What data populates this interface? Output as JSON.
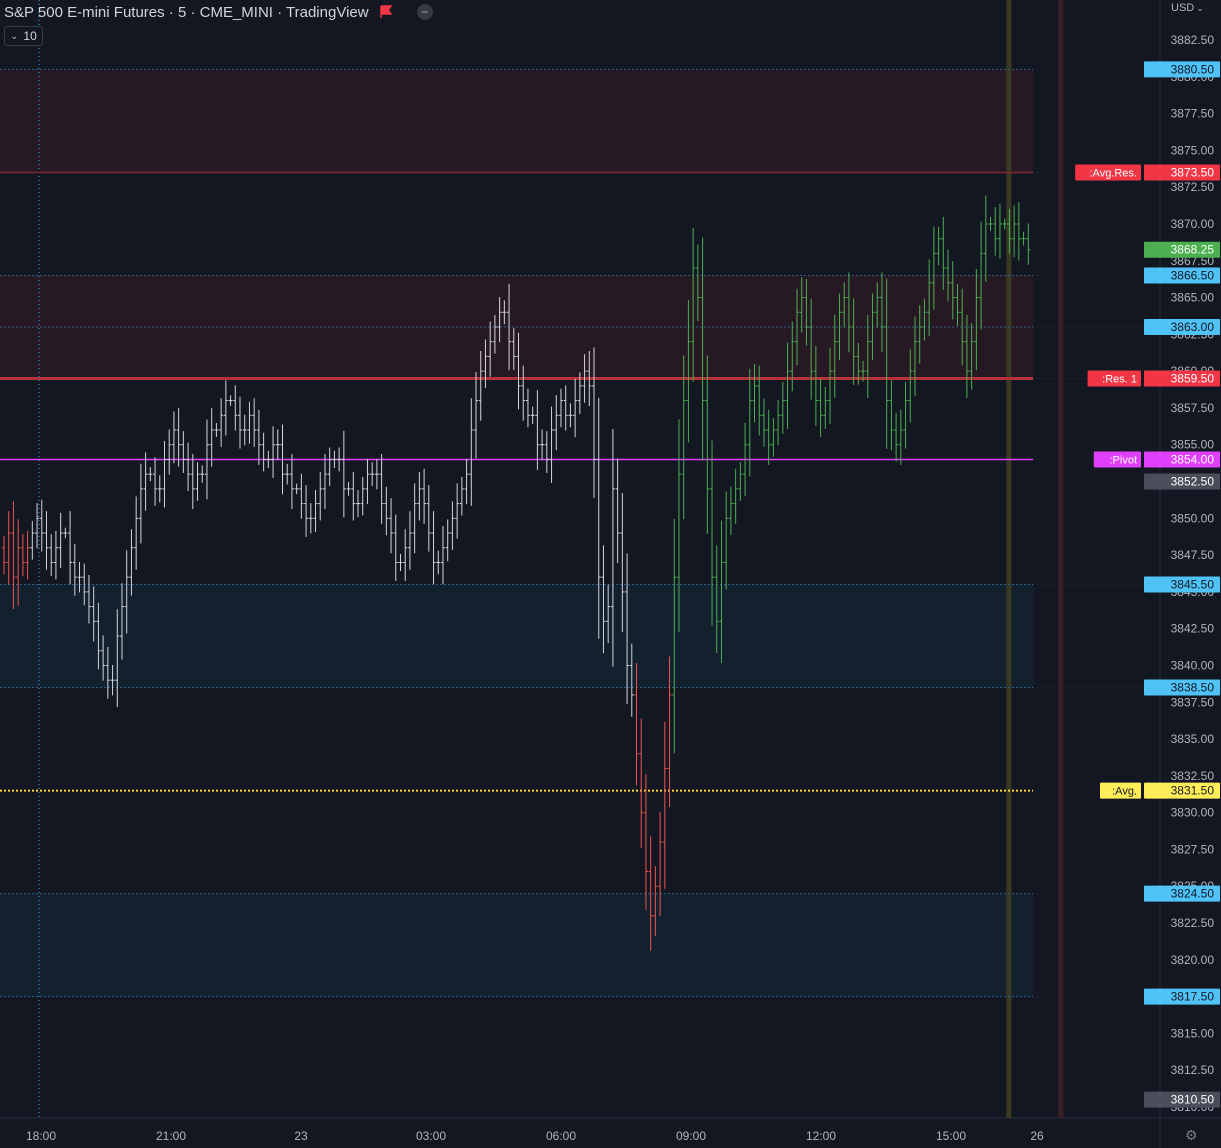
{
  "header": {
    "title": "S&P 500 E-mini Futures · 5 · CME_MINI · TradingView",
    "indicator_value": "10",
    "currency": "USD"
  },
  "colors": {
    "background": "#131722",
    "up": "#4caf50",
    "down": "#ef5350",
    "neutral": "#d1d4dc",
    "pivot": "#e040fb",
    "resistance": "#f23645",
    "average": "#fdd835",
    "level": "#29b6f6"
  },
  "chart_data": {
    "type": "ohlc",
    "ylim": [
      3809.5,
      3883.5
    ],
    "y_ticks": [
      "3882.50",
      "3880.00",
      "3877.50",
      "3875.00",
      "3872.50",
      "3870.00",
      "3867.50",
      "3865.00",
      "3862.50",
      "3860.00",
      "3857.50",
      "3855.00",
      "3852.50",
      "3850.00",
      "3847.50",
      "3845.00",
      "3842.50",
      "3840.00",
      "3837.50",
      "3835.00",
      "3832.50",
      "3830.00",
      "3827.50",
      "3825.00",
      "3822.50",
      "3820.00",
      "3817.50",
      "3815.00",
      "3812.50",
      "3810.00"
    ],
    "x_ticks": [
      "18:00",
      "21:00",
      "23",
      "03:00",
      "06:00",
      "09:00",
      "12:00",
      "15:00",
      "26"
    ],
    "zones": [
      {
        "from": 3873.5,
        "to": 3880.5,
        "kind": "resistance"
      },
      {
        "from": 3859.5,
        "to": 3866.5,
        "kind": "resistance"
      },
      {
        "from": 3838.5,
        "to": 3845.5,
        "kind": "support"
      },
      {
        "from": 3817.5,
        "to": 3824.5,
        "kind": "support"
      }
    ],
    "levels": [
      {
        "price": 3880.5,
        "label": "",
        "value": "3880.50",
        "style": "dotted-blue"
      },
      {
        "price": 3873.5,
        "label": ":Avg.Res.",
        "value": "3873.50",
        "style": "resistance-thin"
      },
      {
        "price": 3866.5,
        "label": "",
        "value": "3866.50",
        "style": "dotted-blue"
      },
      {
        "price": 3863.0,
        "label": "",
        "value": "3863.00",
        "style": "dotted-blue"
      },
      {
        "price": 3859.5,
        "label": ":Res. 1",
        "value": "3859.50",
        "style": "resistance-thick"
      },
      {
        "price": 3854.0,
        "label": ":Pivot",
        "value": "3854.00",
        "style": "pivot"
      },
      {
        "price": 3845.5,
        "label": "",
        "value": "3845.50",
        "style": "dotted-blue"
      },
      {
        "price": 3838.5,
        "label": "",
        "value": "3838.50",
        "style": "dotted-blue"
      },
      {
        "price": 3831.5,
        "label": ":Avg.",
        "value": "3831.50",
        "style": "average"
      },
      {
        "price": 3824.5,
        "label": "",
        "value": "3824.50",
        "style": "dotted-blue"
      },
      {
        "price": 3817.5,
        "label": "",
        "value": "3817.50",
        "style": "dotted-blue"
      }
    ],
    "markers": [
      {
        "price": 3868.25,
        "value": "3868.25",
        "kind": "last-price"
      },
      {
        "price": 3852.5,
        "value": "3852.50",
        "kind": "grey"
      },
      {
        "price": 3810.5,
        "value": "3810.50",
        "kind": "grey"
      }
    ],
    "segments": [
      {
        "color": "down",
        "start": 3848,
        "points": [
          3847,
          3849,
          3846,
          3848,
          3847,
          3848
        ]
      },
      {
        "color": "neutral",
        "start": 3848,
        "points": [
          3849,
          3850,
          3849,
          3848,
          3847,
          3848,
          3849,
          3849,
          3847,
          3846,
          3846,
          3845,
          3844,
          3843,
          3841,
          3840,
          3839,
          3839,
          3842,
          3844,
          3846,
          3848,
          3850,
          3852,
          3853,
          3853,
          3852,
          3852,
          3854,
          3855,
          3856,
          3855,
          3854,
          3853,
          3852,
          3853,
          3853,
          3855,
          3856,
          3856,
          3857,
          3858,
          3858,
          3857,
          3856,
          3856,
          3857,
          3856,
          3855,
          3854,
          3854,
          3855,
          3855,
          3853,
          3853,
          3852,
          3852,
          3851,
          3850,
          3850,
          3851,
          3852,
          3853,
          3854,
          3854,
          3854,
          3852,
          3852,
          3851,
          3851,
          3852,
          3853,
          3853,
          3853,
          3851,
          3850,
          3849,
          3847,
          3847,
          3848,
          3849,
          3851,
          3852,
          3851,
          3849,
          3847,
          3847,
          3848,
          3849,
          3850,
          3851,
          3852,
          3853,
          3856,
          3858,
          3860,
          3861,
          3862,
          3863,
          3864,
          3864,
          3862,
          3861,
          3859,
          3858,
          3857,
          3857,
          3855,
          3855,
          3854,
          3856,
          3857,
          3858,
          3857,
          3857,
          3858,
          3859,
          3860,
          3859,
          3854,
          3846,
          3843,
          3844,
          3852,
          3849,
          3845,
          3840,
          3838
        ]
      },
      {
        "color": "down",
        "start": 3838,
        "points": [
          3834,
          3830,
          3826,
          3823,
          3825,
          3828,
          3833,
          3838
        ]
      },
      {
        "color": "up",
        "start": 3838,
        "points": [
          3846,
          3853,
          3858,
          3862,
          3867,
          3865,
          3858,
          3852,
          3846,
          3843,
          3847,
          3850,
          3851,
          3852,
          3853,
          3855,
          3858,
          3859,
          3857,
          3856,
          3855,
          3856,
          3857,
          3858,
          3860,
          3862,
          3864,
          3865,
          3863,
          3860,
          3858,
          3857,
          3858,
          3860,
          3862,
          3864,
          3865,
          3863,
          3861,
          3860,
          3860,
          3862,
          3864,
          3865,
          3863,
          3858,
          3856,
          3855,
          3856,
          3858,
          3860,
          3862,
          3863,
          3864,
          3866,
          3868,
          3869,
          3867,
          3866,
          3865,
          3864,
          3862,
          3860,
          3862,
          3865,
          3868,
          3870,
          3870,
          3869,
          3870,
          3870,
          3869,
          3870,
          3869,
          3869,
          3868.25
        ]
      }
    ],
    "vertical_markers": [
      {
        "time_index": 213,
        "color": "#3a3a22"
      },
      {
        "time_index": 224,
        "color": "#3a1f26"
      }
    ],
    "crosshair_time_index": 11,
    "dot": {
      "time_index": 290,
      "price": 3863.0
    }
  }
}
